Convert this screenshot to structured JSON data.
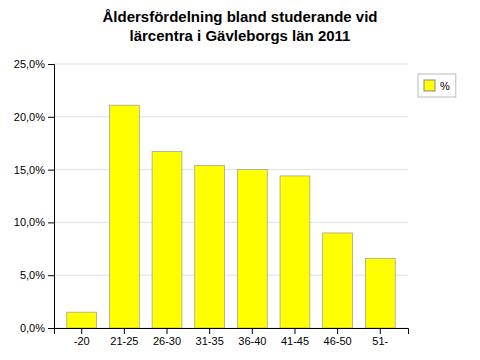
{
  "chart_data": {
    "type": "bar",
    "title": "Åldersfördelning bland studerande vid\nlärcentra i Gävleborgs län 2011",
    "categories": [
      "-20",
      "21-25",
      "26-30",
      "31-35",
      "36-40",
      "41-45",
      "46-50",
      "51-"
    ],
    "series": [
      {
        "name": "%",
        "color": "#FFFF00",
        "values": [
          1.5,
          21.1,
          16.7,
          15.4,
          15.0,
          14.4,
          9.0,
          6.6
        ]
      }
    ],
    "ylim": [
      0,
      25
    ],
    "yticks": [
      {
        "value": 0,
        "label": "0,0%"
      },
      {
        "value": 5,
        "label": "5,0%"
      },
      {
        "value": 10,
        "label": "10,0%"
      },
      {
        "value": 15,
        "label": "15,0%"
      },
      {
        "value": 20,
        "label": "20,0%"
      },
      {
        "value": 25,
        "label": "25,0%"
      }
    ],
    "grid": true,
    "legend": "right"
  }
}
